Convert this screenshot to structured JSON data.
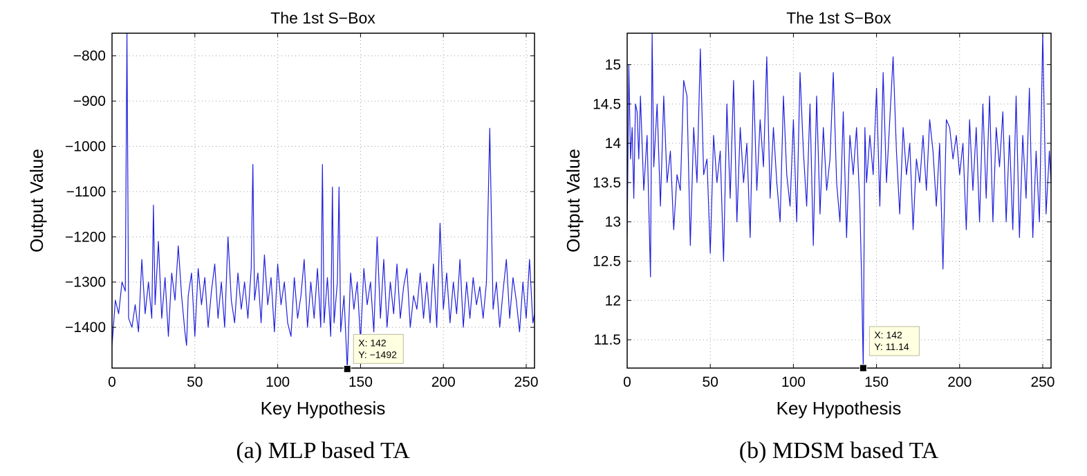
{
  "chart_data": [
    {
      "type": "line",
      "caption": "(a) MLP based TA",
      "title": "The 1st S−Box",
      "xlabel": "Key Hypothesis",
      "ylabel": "Output Value",
      "xlim": [
        0,
        255
      ],
      "ylim": [
        -1490,
        -750
      ],
      "xticks": [
        0,
        50,
        100,
        150,
        200,
        250
      ],
      "xtick_labels": [
        "0",
        "50",
        "100",
        "150",
        "200",
        "250"
      ],
      "yticks": [
        -800,
        -900,
        -1000,
        -1100,
        -1200,
        -1300,
        -1400
      ],
      "ytick_labels": [
        "−800",
        "−900",
        "−1000",
        "−1100",
        "−1200",
        "−1300",
        "−1400"
      ],
      "grid": true,
      "line_color": "#1f1fdd",
      "datatip": {
        "x": 142,
        "y": -1492,
        "x_label": "X: 142",
        "y_label": "Y: −1492"
      },
      "series": [
        {
          "x": [
            0,
            2,
            4,
            6,
            8,
            9,
            10,
            12,
            14,
            16,
            18,
            20,
            22,
            24,
            25,
            26,
            28,
            30,
            32,
            34,
            36,
            38,
            40,
            42,
            44,
            45,
            46,
            48,
            50,
            52,
            54,
            56,
            58,
            60,
            62,
            64,
            66,
            68,
            70,
            72,
            74,
            76,
            78,
            80,
            82,
            84,
            85,
            86,
            88,
            90,
            92,
            94,
            96,
            98,
            100,
            102,
            104,
            106,
            108,
            110,
            112,
            114,
            116,
            118,
            120,
            122,
            124,
            126,
            127,
            128,
            130,
            132,
            133,
            134,
            136,
            137,
            138,
            140,
            142,
            144,
            146,
            148,
            150,
            152,
            154,
            156,
            158,
            160,
            162,
            164,
            166,
            168,
            170,
            172,
            174,
            176,
            178,
            180,
            182,
            184,
            186,
            188,
            190,
            192,
            194,
            196,
            198,
            200,
            202,
            204,
            206,
            208,
            210,
            212,
            214,
            216,
            218,
            220,
            222,
            224,
            226,
            228,
            230,
            232,
            234,
            236,
            238,
            240,
            242,
            244,
            246,
            248,
            250,
            252,
            254,
            255
          ],
          "y": [
            -1440,
            -1340,
            -1370,
            -1300,
            -1320,
            -750,
            -1380,
            -1400,
            -1350,
            -1410,
            -1250,
            -1370,
            -1300,
            -1380,
            -1130,
            -1350,
            -1210,
            -1380,
            -1290,
            -1420,
            -1280,
            -1340,
            -1220,
            -1330,
            -1410,
            -1440,
            -1330,
            -1280,
            -1420,
            -1270,
            -1350,
            -1290,
            -1400,
            -1320,
            -1260,
            -1380,
            -1300,
            -1400,
            -1200,
            -1340,
            -1390,
            -1280,
            -1360,
            -1300,
            -1380,
            -1270,
            -1040,
            -1340,
            -1280,
            -1390,
            -1240,
            -1350,
            -1290,
            -1410,
            -1260,
            -1350,
            -1300,
            -1390,
            -1420,
            -1290,
            -1380,
            -1330,
            -1250,
            -1400,
            -1300,
            -1380,
            -1270,
            -1400,
            -1040,
            -1390,
            -1290,
            -1420,
            -1090,
            -1390,
            -1300,
            -1090,
            -1410,
            -1330,
            -1492,
            -1280,
            -1360,
            -1300,
            -1430,
            -1270,
            -1350,
            -1300,
            -1410,
            -1200,
            -1380,
            -1250,
            -1400,
            -1300,
            -1370,
            -1260,
            -1380,
            -1310,
            -1270,
            -1400,
            -1330,
            -1360,
            -1280,
            -1380,
            -1300,
            -1390,
            -1260,
            -1400,
            -1170,
            -1360,
            -1280,
            -1390,
            -1300,
            -1370,
            -1250,
            -1400,
            -1300,
            -1380,
            -1290,
            -1350,
            -1310,
            -1380,
            -1300,
            -960,
            -1360,
            -1300,
            -1400,
            -1320,
            -1250,
            -1380,
            -1290,
            -1340,
            -1410,
            -1300,
            -1380,
            -1250,
            -1390,
            -1370
          ]
        }
      ]
    },
    {
      "type": "line",
      "caption": "(b) MDSM based TA",
      "title": "The 1st S−Box",
      "xlabel": "Key Hypothesis",
      "ylabel": "Output Value",
      "xlim": [
        0,
        255
      ],
      "ylim": [
        11.14,
        15.4
      ],
      "xticks": [
        0,
        50,
        100,
        150,
        200,
        250
      ],
      "xtick_labels": [
        "0",
        "50",
        "100",
        "150",
        "200",
        "250"
      ],
      "yticks": [
        11.5,
        12,
        12.5,
        13,
        13.5,
        14,
        14.5,
        15
      ],
      "ytick_labels": [
        "11.5",
        "12",
        "12.5",
        "13",
        "13.5",
        "14",
        "14.5",
        "15"
      ],
      "grid": true,
      "line_color": "#1f1fdd",
      "datatip": {
        "x": 142,
        "y": 11.14,
        "x_label": "X: 142",
        "y_label": "Y: 11.14"
      },
      "series": [
        {
          "x": [
            0,
            1,
            2,
            3,
            4,
            5,
            6,
            7,
            8,
            10,
            12,
            14,
            15,
            16,
            18,
            20,
            22,
            24,
            26,
            28,
            30,
            32,
            34,
            36,
            38,
            40,
            42,
            44,
            46,
            48,
            50,
            52,
            54,
            56,
            58,
            60,
            62,
            64,
            66,
            68,
            70,
            72,
            74,
            76,
            78,
            80,
            82,
            84,
            86,
            88,
            90,
            92,
            94,
            96,
            98,
            100,
            102,
            104,
            106,
            108,
            110,
            112,
            114,
            116,
            118,
            120,
            122,
            124,
            126,
            128,
            130,
            132,
            134,
            136,
            138,
            140,
            141,
            142,
            143,
            144,
            146,
            148,
            150,
            152,
            154,
            156,
            158,
            160,
            162,
            164,
            166,
            168,
            170,
            172,
            174,
            176,
            178,
            180,
            182,
            184,
            186,
            188,
            190,
            192,
            194,
            196,
            198,
            200,
            202,
            204,
            206,
            208,
            210,
            212,
            214,
            216,
            218,
            220,
            222,
            224,
            226,
            228,
            230,
            232,
            234,
            236,
            238,
            240,
            242,
            244,
            246,
            248,
            250,
            252,
            254,
            255
          ],
          "y": [
            12.8,
            15.0,
            13.8,
            14.2,
            13.3,
            14.5,
            14.4,
            13.8,
            14.6,
            13.4,
            14.1,
            12.3,
            15.4,
            13.7,
            14.5,
            13.2,
            14.6,
            13.5,
            13.9,
            12.9,
            13.6,
            13.4,
            14.8,
            14.6,
            12.7,
            14.2,
            13.5,
            15.2,
            13.6,
            13.8,
            12.6,
            14.1,
            13.5,
            13.9,
            12.5,
            14.5,
            13.3,
            14.8,
            13.0,
            14.2,
            13.5,
            14.0,
            12.8,
            14.8,
            13.4,
            14.3,
            13.7,
            15.1,
            13.3,
            14.2,
            13.5,
            13.0,
            14.6,
            13.6,
            13.2,
            14.3,
            13.0,
            14.9,
            13.9,
            13.2,
            14.5,
            12.7,
            14.6,
            13.1,
            14.2,
            13.4,
            13.8,
            14.9,
            13.5,
            13.0,
            14.4,
            12.8,
            14.1,
            13.6,
            14.2,
            13.2,
            12.3,
            11.14,
            14.2,
            13.5,
            14.1,
            13.6,
            14.7,
            13.2,
            14.9,
            13.5,
            14.3,
            15.1,
            13.9,
            13.1,
            14.2,
            13.6,
            14.0,
            12.9,
            13.8,
            13.5,
            14.1,
            13.4,
            14.3,
            13.9,
            13.2,
            14.0,
            12.4,
            14.3,
            14.2,
            13.8,
            14.1,
            13.6,
            14.0,
            12.9,
            14.3,
            13.4,
            14.2,
            13.0,
            14.5,
            13.3,
            14.6,
            13.0,
            14.2,
            13.7,
            14.4,
            13.0,
            14.1,
            12.9,
            14.6,
            12.8,
            14.1,
            13.3,
            14.7,
            12.8,
            13.9,
            13.0,
            15.4,
            13.1,
            13.9,
            13.5
          ]
        }
      ]
    }
  ]
}
